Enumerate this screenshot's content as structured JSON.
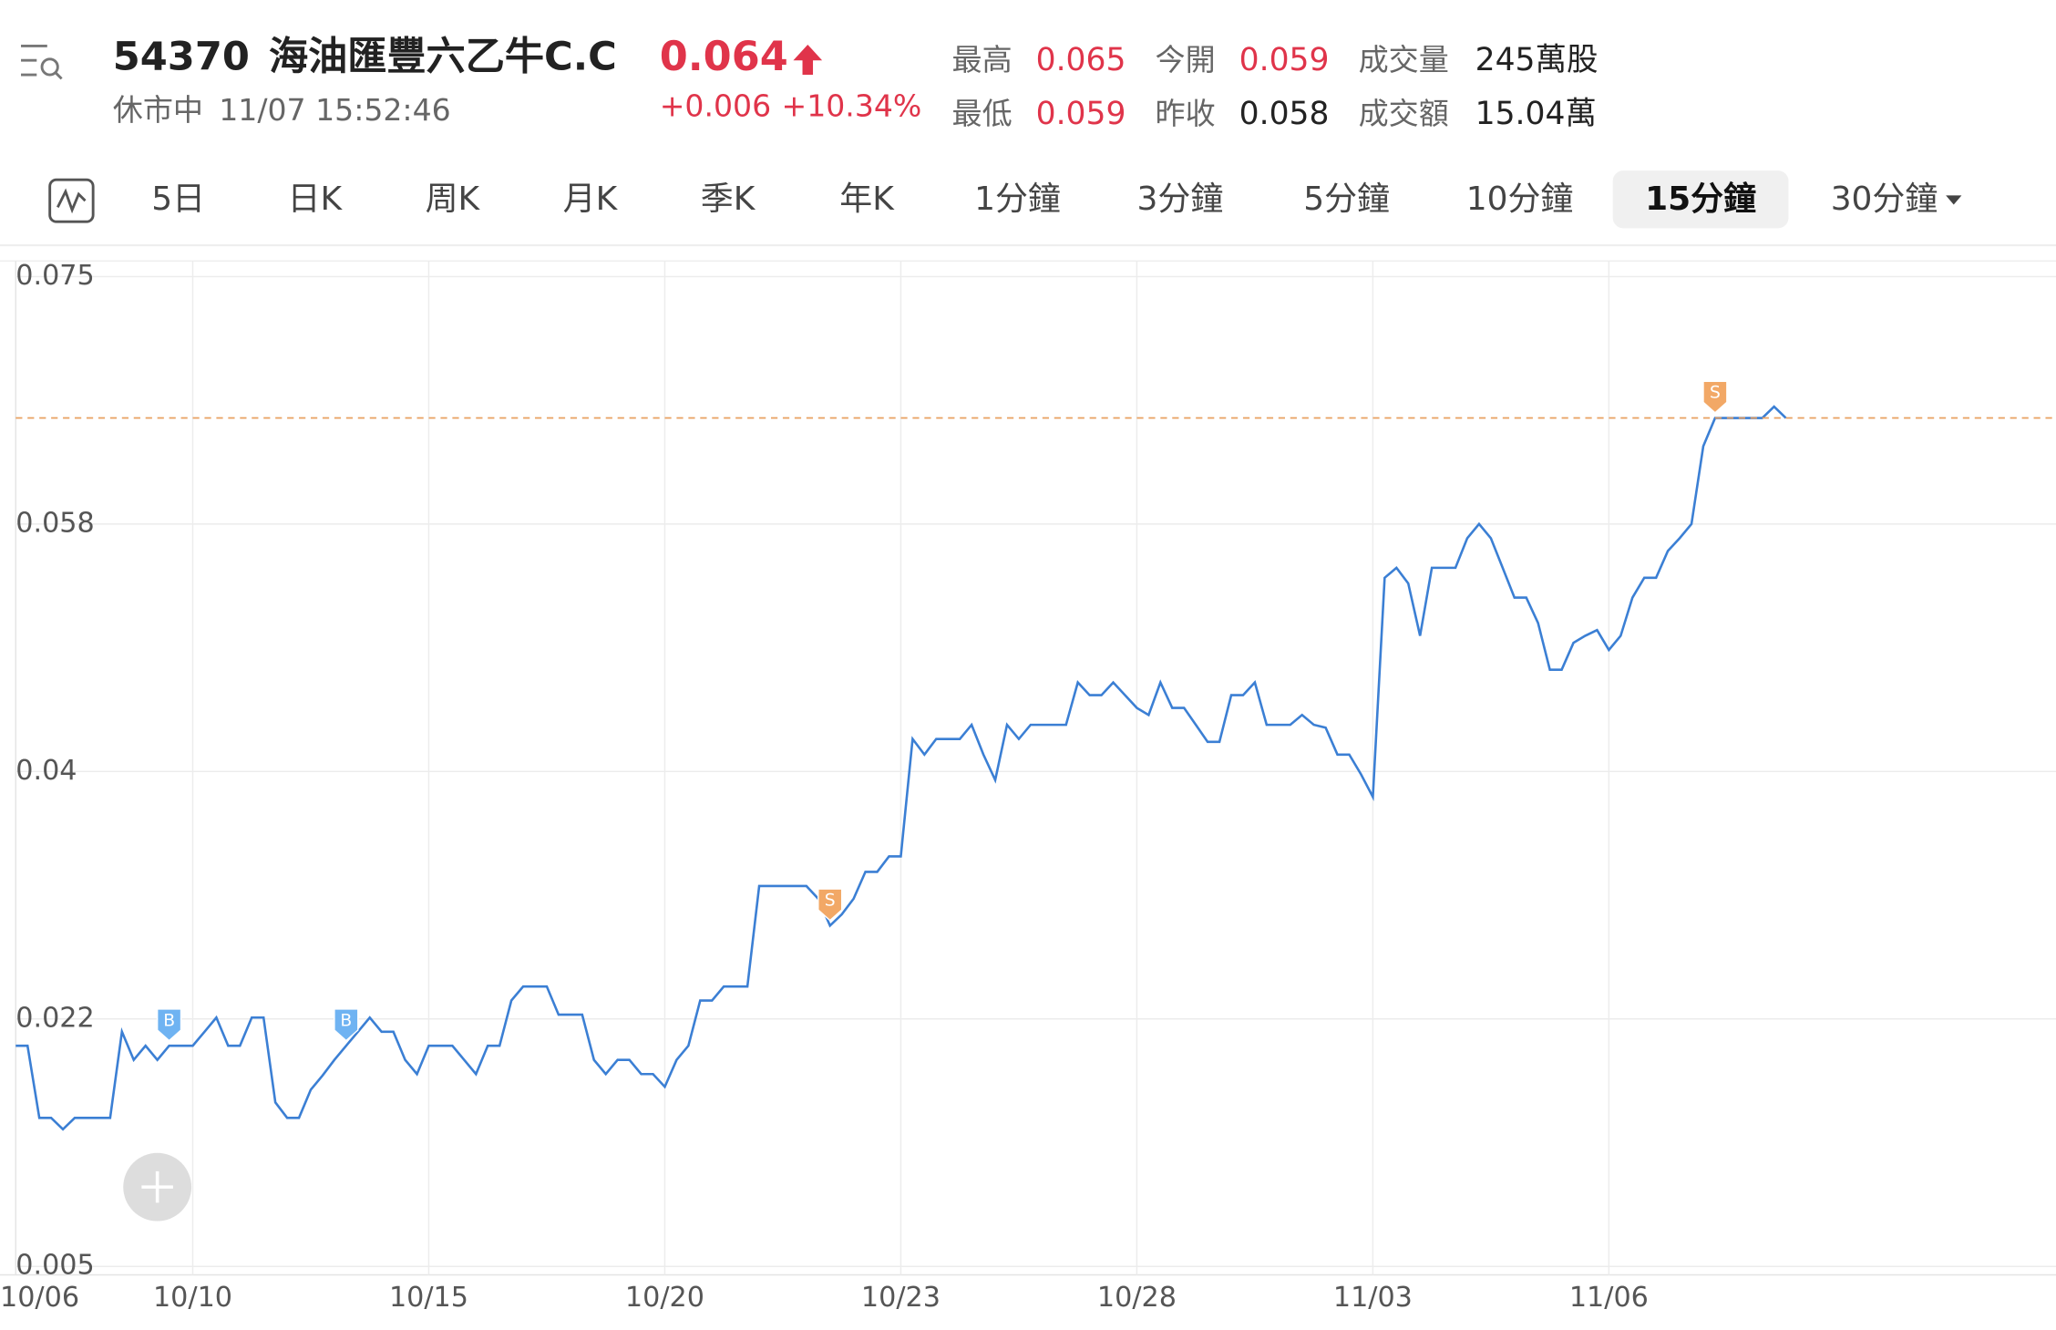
{
  "header": {
    "code": "54370",
    "name": "海油匯豐六乙牛C.C",
    "price": "0.064",
    "status": "休市中",
    "time": "11/07 15:52:46",
    "change": "+0.006",
    "change_pct": "+10.34%",
    "stats": [
      {
        "label": "最高",
        "value": "0.065",
        "up": true
      },
      {
        "label": "今開",
        "value": "0.059",
        "up": true
      },
      {
        "label": "成交量",
        "value": "245萬股",
        "up": false
      },
      {
        "label": "最低",
        "value": "0.059",
        "up": true
      },
      {
        "label": "昨收",
        "value": "0.058",
        "up": false
      },
      {
        "label": "成交額",
        "value": "15.04萬",
        "up": false
      }
    ]
  },
  "tabs": {
    "items": [
      "5日",
      "日K",
      "周K",
      "月K",
      "季K",
      "年K",
      "1分鐘",
      "3分鐘",
      "5分鐘",
      "10分鐘",
      "15分鐘",
      "30分鐘"
    ],
    "active": 10
  },
  "chart_data": {
    "type": "line",
    "color": "#3b7fd4",
    "grid": true,
    "ylim": [
      0.0044,
      0.0761
    ],
    "yticks": [
      0.005,
      {
        "value": 0.0225,
        "label": "0.022"
      },
      0.04,
      {
        "value": 0.0575,
        "label": "0.058"
      },
      0.075
    ],
    "reference_line": 0.065,
    "categories": [
      "10/06",
      null,
      null,
      null,
      null,
      null,
      null,
      null,
      null,
      null,
      null,
      null,
      null,
      null,
      null,
      "10/10",
      null,
      null,
      null,
      null,
      null,
      null,
      null,
      null,
      null,
      null,
      null,
      null,
      null,
      null,
      null,
      null,
      null,
      null,
      null,
      "10/15",
      null,
      null,
      null,
      null,
      null,
      null,
      null,
      null,
      null,
      null,
      null,
      null,
      null,
      null,
      null,
      null,
      null,
      null,
      null,
      "10/20",
      null,
      null,
      null,
      null,
      null,
      null,
      null,
      null,
      null,
      null,
      null,
      null,
      null,
      null,
      null,
      null,
      null,
      null,
      null,
      "10/23",
      null,
      null,
      null,
      null,
      null,
      null,
      null,
      null,
      null,
      null,
      null,
      null,
      null,
      null,
      null,
      null,
      null,
      null,
      null,
      "10/28",
      null,
      null,
      null,
      null,
      null,
      null,
      null,
      null,
      null,
      null,
      null,
      null,
      null,
      null,
      null,
      null,
      null,
      null,
      null,
      "11/03",
      null,
      null,
      null,
      null,
      null,
      null,
      null,
      null,
      null,
      null,
      null,
      null,
      null,
      null,
      null,
      null,
      null,
      null,
      null,
      "11/06",
      null,
      null,
      null,
      null,
      null,
      null,
      null,
      null,
      null,
      null,
      null,
      null,
      null,
      null,
      null
    ],
    "values": [
      0.0206,
      0.0206,
      0.0155,
      0.0155,
      0.0147,
      0.0155,
      0.0155,
      0.0155,
      0.0155,
      0.0216,
      0.0196,
      0.0206,
      0.0196,
      0.0206,
      0.0206,
      0.0206,
      0.0216,
      0.0226,
      0.0206,
      0.0206,
      0.0226,
      0.0226,
      0.0166,
      0.0155,
      0.0155,
      0.0175,
      0.0185,
      0.0196,
      0.0206,
      0.0216,
      0.0226,
      0.0216,
      0.0216,
      0.0196,
      0.0186,
      0.0206,
      0.0206,
      0.0206,
      0.0196,
      0.0186,
      0.0206,
      0.0206,
      0.0238,
      0.0248,
      0.0248,
      0.0248,
      0.0228,
      0.0228,
      0.0228,
      0.0196,
      0.0186,
      0.0196,
      0.0196,
      0.0186,
      0.0186,
      0.0177,
      0.0196,
      0.0206,
      0.0238,
      0.0238,
      0.0248,
      0.0248,
      0.0248,
      0.0319,
      0.0319,
      0.0319,
      0.0319,
      0.0319,
      0.031,
      0.0291,
      0.0299,
      0.031,
      0.0329,
      0.0329,
      0.034,
      0.034,
      0.0423,
      0.0412,
      0.0423,
      0.0423,
      0.0423,
      0.0433,
      0.0412,
      0.0394,
      0.0433,
      0.0423,
      0.0433,
      0.0433,
      0.0433,
      0.0433,
      0.0463,
      0.0454,
      0.0454,
      0.0463,
      0.0454,
      0.0445,
      0.044,
      0.0463,
      0.0445,
      0.0445,
      0.0433,
      0.0421,
      0.0421,
      0.0454,
      0.0454,
      0.0463,
      0.0433,
      0.0433,
      0.0433,
      0.044,
      0.0433,
      0.0431,
      0.0412,
      0.0412,
      0.0398,
      0.0382,
      0.0537,
      0.0544,
      0.0533,
      0.0496,
      0.0544,
      0.0544,
      0.0544,
      0.0565,
      0.0575,
      0.0565,
      0.0544,
      0.0523,
      0.0523,
      0.0505,
      0.0472,
      0.0472,
      0.0491,
      0.0496,
      0.05,
      0.0486,
      0.0496,
      0.0523,
      0.0537,
      0.0537,
      0.0556,
      0.0565,
      0.0575,
      0.063,
      0.065,
      0.065,
      0.065,
      0.065,
      0.065,
      0.0658,
      0.065
    ],
    "markers": [
      {
        "index": 13,
        "label": "B"
      },
      {
        "index": 28,
        "label": "B"
      },
      {
        "index": 69,
        "label": "S"
      },
      {
        "index": 144,
        "label": "S"
      }
    ]
  }
}
